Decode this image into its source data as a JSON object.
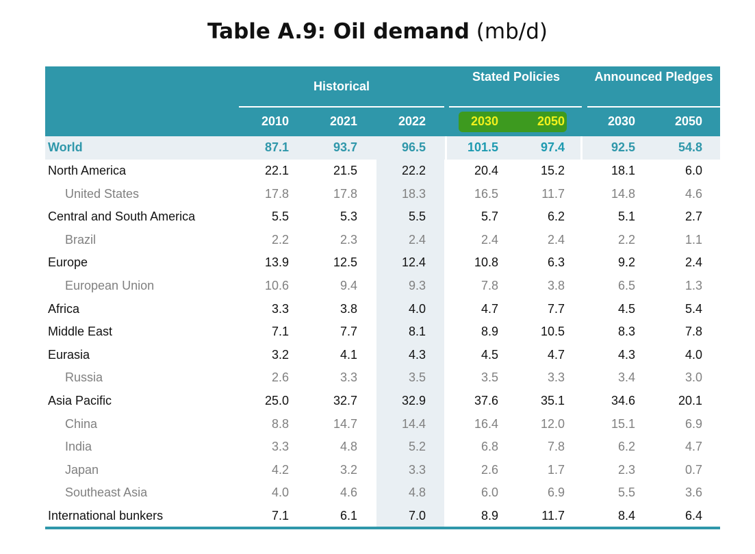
{
  "title": {
    "bold": "Table A.9: Oil demand",
    "unit": "(mb/d)"
  },
  "groups": {
    "historical": "Historical",
    "stated": "Stated Policies",
    "announced": "Announced Pledges"
  },
  "years": [
    "2010",
    "2021",
    "2022",
    "2030",
    "2050",
    "2030",
    "2050"
  ],
  "rows": [
    {
      "label": "World",
      "values": [
        "87.1",
        "93.7",
        "96.5",
        "101.5",
        "97.4",
        "92.5",
        "54.8"
      ]
    },
    {
      "label": "North America",
      "values": [
        "22.1",
        "21.5",
        "22.2",
        "20.4",
        "15.2",
        "18.1",
        "6.0"
      ]
    },
    {
      "label": "United States",
      "values": [
        "17.8",
        "17.8",
        "18.3",
        "16.5",
        "11.7",
        "14.8",
        "4.6"
      ]
    },
    {
      "label": "Central and South America",
      "values": [
        "5.5",
        "5.3",
        "5.5",
        "5.7",
        "6.2",
        "5.1",
        "2.7"
      ]
    },
    {
      "label": "Brazil",
      "values": [
        "2.2",
        "2.3",
        "2.4",
        "2.4",
        "2.4",
        "2.2",
        "1.1"
      ]
    },
    {
      "label": "Europe",
      "values": [
        "13.9",
        "12.5",
        "12.4",
        "10.8",
        "6.3",
        "9.2",
        "2.4"
      ]
    },
    {
      "label": "European Union",
      "values": [
        "10.6",
        "9.4",
        "9.3",
        "7.8",
        "3.8",
        "6.5",
        "1.3"
      ]
    },
    {
      "label": "Africa",
      "values": [
        "3.3",
        "3.8",
        "4.0",
        "4.7",
        "7.7",
        "4.5",
        "5.4"
      ]
    },
    {
      "label": "Middle East",
      "values": [
        "7.1",
        "7.7",
        "8.1",
        "8.9",
        "10.5",
        "8.3",
        "7.8"
      ]
    },
    {
      "label": "Eurasia",
      "values": [
        "3.2",
        "4.1",
        "4.3",
        "4.5",
        "4.7",
        "4.3",
        "4.0"
      ]
    },
    {
      "label": "Russia",
      "values": [
        "2.6",
        "3.3",
        "3.5",
        "3.5",
        "3.3",
        "3.4",
        "3.0"
      ]
    },
    {
      "label": "Asia Pacific",
      "values": [
        "25.0",
        "32.7",
        "32.9",
        "37.6",
        "35.1",
        "34.6",
        "20.1"
      ]
    },
    {
      "label": "China",
      "values": [
        "8.8",
        "14.7",
        "14.4",
        "16.4",
        "12.0",
        "15.1",
        "6.9"
      ]
    },
    {
      "label": "India",
      "values": [
        "3.3",
        "4.8",
        "5.2",
        "6.8",
        "7.8",
        "6.2",
        "4.7"
      ]
    },
    {
      "label": "Japan",
      "values": [
        "4.2",
        "3.2",
        "3.3",
        "2.6",
        "1.7",
        "2.3",
        "0.7"
      ]
    },
    {
      "label": "Southeast Asia",
      "values": [
        "4.0",
        "4.6",
        "4.8",
        "6.0",
        "6.9",
        "5.5",
        "3.6"
      ]
    },
    {
      "label": "International bunkers",
      "values": [
        "7.1",
        "6.1",
        "7.0",
        "8.9",
        "11.7",
        "8.4",
        "6.4"
      ]
    }
  ],
  "colors": {
    "header": "#2f97aa",
    "highlight_yellow": "#f0ef0a",
    "highlight_green": "#3d9a1f",
    "band": "#e9eff3"
  }
}
